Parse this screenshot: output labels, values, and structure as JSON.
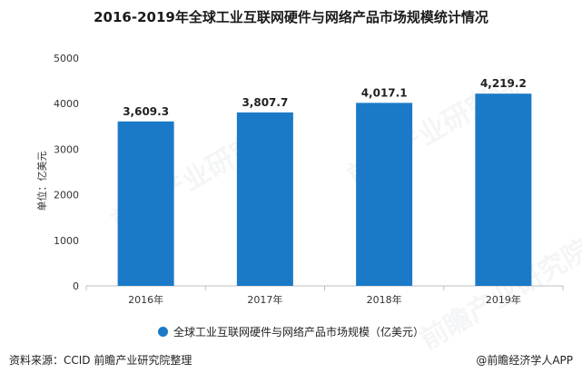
{
  "title": "2016-2019年全球工业互联网硬件与网络产品市场规模统计情况",
  "source": "资料来源：CCID 前瞻产业研究院整理",
  "credit": "@前瞻经济学人APP",
  "watermark": "前瞻产业研究院",
  "colors": {
    "bar": "#1a7ac7",
    "axis": "#bfbfbf",
    "text": "#333333"
  },
  "chart_data": {
    "type": "bar",
    "categories": [
      "2016年",
      "2017年",
      "2018年",
      "2019年"
    ],
    "series": [
      {
        "name": "全球工业互联网硬件与网络产品市场规模（亿美元）",
        "values": [
          3609.3,
          3807.7,
          4017.1,
          4219.2
        ]
      }
    ],
    "value_labels": [
      "3,609.3",
      "3,807.7",
      "4,017.1",
      "4,219.2"
    ],
    "ylabel": "单位：亿美元",
    "ylim": [
      0,
      5000
    ],
    "yticks": [
      0,
      1000,
      2000,
      3000,
      4000,
      5000
    ],
    "grid": false,
    "legend_position": "bottom"
  }
}
